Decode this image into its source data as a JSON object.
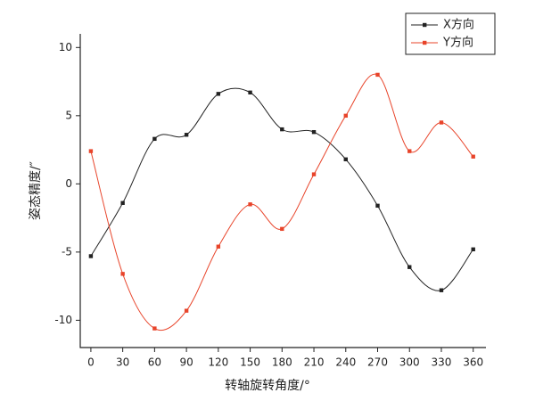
{
  "chart_data": {
    "type": "line",
    "x_label": "转轴旋转角度/°",
    "y_label": "姿态精度/″",
    "x": [
      0,
      30,
      60,
      90,
      120,
      150,
      180,
      210,
      240,
      270,
      300,
      330,
      360
    ],
    "series": [
      {
        "name": "X方向",
        "color": "#222222",
        "values": [
          -5.3,
          -1.4,
          3.3,
          3.6,
          6.6,
          6.7,
          4.0,
          3.8,
          1.8,
          -1.6,
          -6.1,
          -7.8,
          -4.8
        ]
      },
      {
        "name": "Y方向",
        "color": "#e8442a",
        "values": [
          2.4,
          -6.6,
          -10.6,
          -9.3,
          -4.6,
          -1.5,
          -3.3,
          0.7,
          5.0,
          8.0,
          2.4,
          4.5,
          2.0
        ]
      }
    ],
    "xlim": [
      -10,
      372
    ],
    "xticks": [
      0,
      30,
      60,
      90,
      120,
      150,
      180,
      210,
      240,
      270,
      300,
      330,
      360
    ],
    "ylim": [
      -12,
      11
    ],
    "yticks": [
      -10,
      -5,
      0,
      5,
      10
    ],
    "legend": "upper right",
    "smooth": true
  }
}
